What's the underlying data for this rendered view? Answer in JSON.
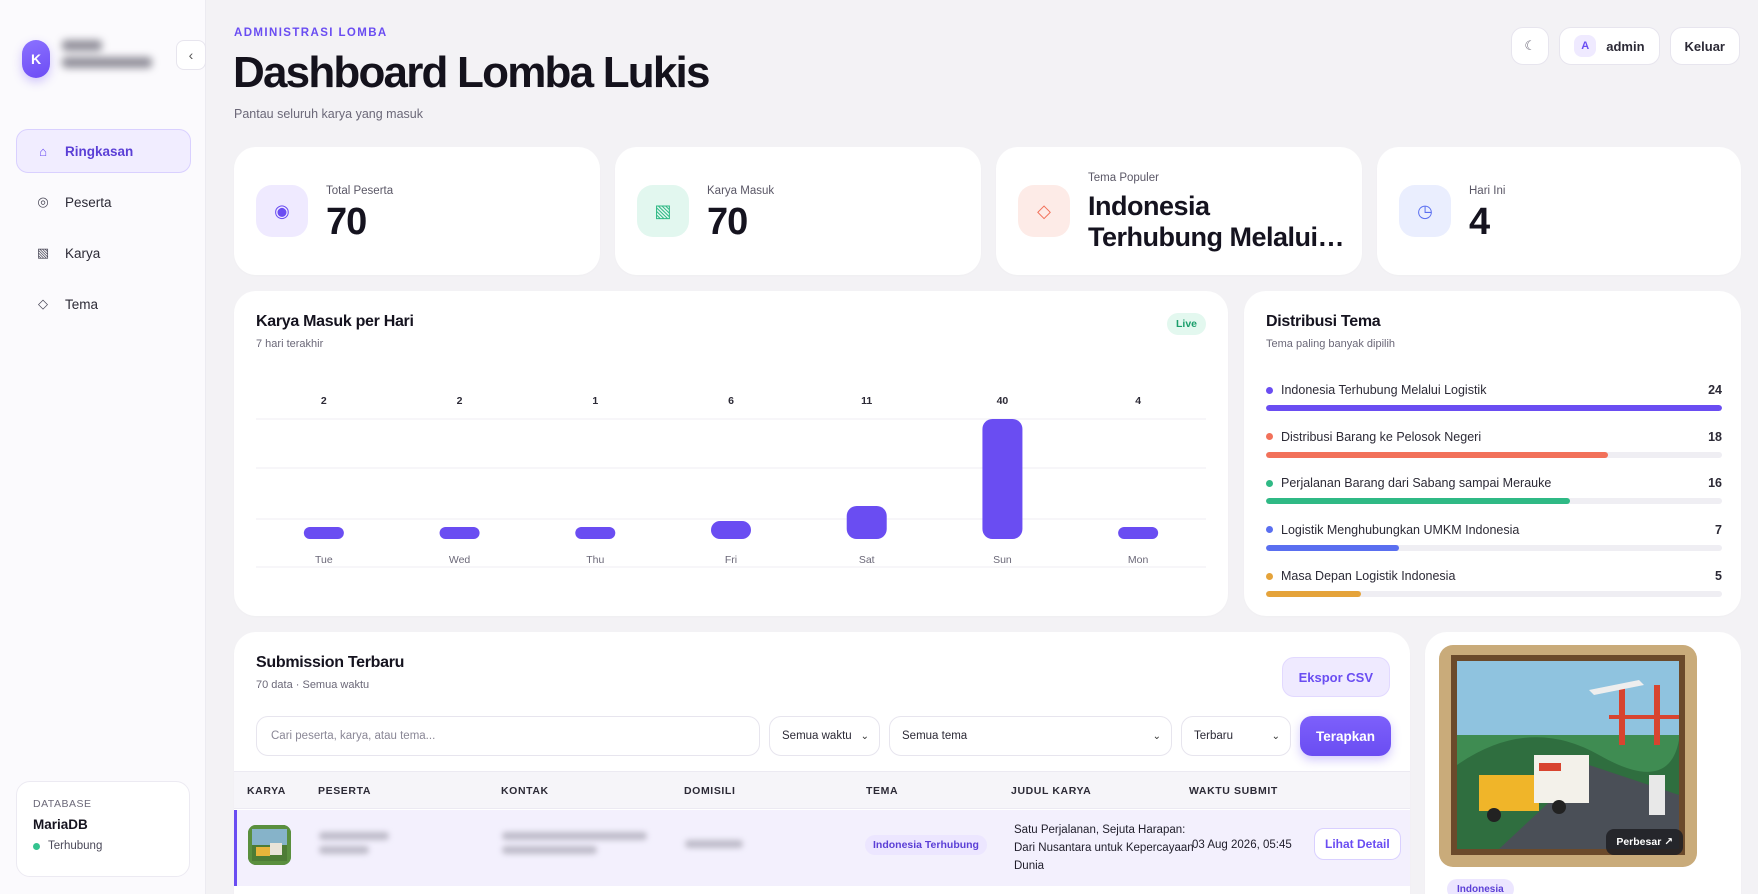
{
  "sidebar": {
    "brand_initial": "K",
    "collapse_icon": "chevron-left",
    "items": [
      {
        "label": "Ringkasan",
        "icon": "home-icon",
        "active": true
      },
      {
        "label": "Peserta",
        "icon": "target-icon",
        "active": false
      },
      {
        "label": "Karya",
        "icon": "artwork-icon",
        "active": false
      },
      {
        "label": "Tema",
        "icon": "diamond-icon",
        "active": false
      }
    ],
    "database": {
      "label": "DATABASE",
      "name": "MariaDB",
      "status": "Terhubung"
    }
  },
  "header": {
    "eyebrow": "ADMINISTRASI LOMBA",
    "title": "Dashboard Lomba Lukis",
    "subtitle": "Pantau seluruh karya yang masuk",
    "theme_toggle_icon": "moon-icon",
    "user_initial": "A",
    "user_name": "admin",
    "logout_label": "Keluar"
  },
  "stats": {
    "total_peserta": {
      "label": "Total Peserta",
      "value": "70"
    },
    "karya_masuk": {
      "label": "Karya Masuk",
      "value": "70"
    },
    "tema_populer": {
      "label": "Tema Populer",
      "line1": "Indonesia",
      "line2": "Terhubung Melalui Logistik"
    },
    "hari_ini": {
      "label": "Hari Ini",
      "value": "4"
    }
  },
  "chart": {
    "title": "Karya Masuk per Hari",
    "subtitle": "7 hari terakhir",
    "badge": "Live"
  },
  "chart_data": {
    "type": "bar",
    "categories": [
      "Tue",
      "Wed",
      "Thu",
      "Fri",
      "Sat",
      "Sun",
      "Mon"
    ],
    "values": [
      2,
      2,
      1,
      6,
      11,
      40,
      4
    ],
    "title": "Karya Masuk per Hari",
    "subtitle": "7 hari terakhir",
    "grid": true,
    "data_labels": true,
    "color": "#6a4df2"
  },
  "distribusi": {
    "title": "Distribusi Tema",
    "subtitle": "Tema paling banyak dipilih",
    "items": [
      {
        "label": "Indonesia Terhubung Melalui Logistik",
        "value": 24,
        "color": "#6a4df2"
      },
      {
        "label": "Distribusi Barang ke Pelosok Negeri",
        "value": 18,
        "color": "#f2715a"
      },
      {
        "label": "Perjalanan Barang dari Sabang sampai Merauke",
        "value": 16,
        "color": "#2fb985"
      },
      {
        "label": "Logistik Menghubungkan UMKM Indonesia",
        "value": 7,
        "color": "#5a6ff0"
      },
      {
        "label": "Masa Depan Logistik Indonesia",
        "value": 5,
        "color": "#e5a33a"
      }
    ]
  },
  "submissions": {
    "title": "Submission Terbaru",
    "subtitle": "70 data · Semua waktu",
    "export_label": "Ekspor CSV",
    "search_placeholder": "Cari peserta, karya, atau tema...",
    "filter_waktu": "Semua waktu",
    "filter_tema": "Semua tema",
    "filter_sort": "Terbaru",
    "apply_label": "Terapkan",
    "columns": [
      "KARYA",
      "PESERTA",
      "KONTAK",
      "DOMISILI",
      "TEMA",
      "JUDUL KARYA",
      "WAKTU SUBMIT"
    ],
    "rows": [
      {
        "tema": "Indonesia Terhubung",
        "judul": "Satu Perjalanan, Sejuta Harapan: Dari Nusantara untuk Kepercayaan Dunia",
        "waktu": "03 Aug 2026, 05:45",
        "action": "Lihat Detail"
      }
    ]
  },
  "preview": {
    "enlarge_label": "Perbesar ↗",
    "tag": "Indonesia"
  }
}
